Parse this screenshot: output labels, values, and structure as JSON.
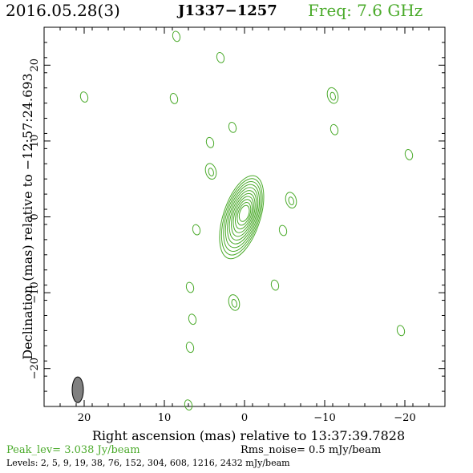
{
  "header": {
    "date": "2016.05.28(3)",
    "source": "J1337−1257",
    "frequency": "Freq: 7.6 GHz"
  },
  "colors": {
    "contour": "#4aaa2a",
    "beam": "#808080",
    "frequency_text": "#4aaa2a"
  },
  "chart_data": {
    "type": "contour",
    "xlabel": "Right ascension (mas) relative to 13:37:39.7828",
    "ylabel": "Declination (mas) relative to −12:57:24.693",
    "xlim": [
      25,
      -25
    ],
    "ylim": [
      -25,
      25
    ],
    "x_ticks": [
      20,
      10,
      0,
      -10,
      -20
    ],
    "x_tick_labels": [
      "20",
      "10",
      "0",
      "−10",
      "−20"
    ],
    "y_ticks": [
      20,
      10,
      0,
      -10,
      -20
    ],
    "y_tick_labels": [
      "20",
      "10",
      "0",
      "−10",
      "−20"
    ],
    "grid": false,
    "core": {
      "x": 0,
      "y": 0.5,
      "levels": 11
    },
    "islands": [
      {
        "x": 8.5,
        "y": 23.8,
        "rings": 1
      },
      {
        "x": 3.0,
        "y": 21.0,
        "rings": 1
      },
      {
        "x": 20.0,
        "y": 15.8,
        "rings": 1
      },
      {
        "x": 8.8,
        "y": 15.6,
        "rings": 1
      },
      {
        "x": -11.0,
        "y": 16.0,
        "rings": 2
      },
      {
        "x": -11.2,
        "y": 11.5,
        "rings": 1
      },
      {
        "x": 1.5,
        "y": 11.8,
        "rings": 1
      },
      {
        "x": 4.3,
        "y": 9.8,
        "rings": 1
      },
      {
        "x": -20.5,
        "y": 8.2,
        "rings": 1
      },
      {
        "x": 4.2,
        "y": 6.0,
        "rings": 2
      },
      {
        "x": -5.8,
        "y": 2.2,
        "rings": 2
      },
      {
        "x": 6.0,
        "y": -1.7,
        "rings": 1
      },
      {
        "x": -4.8,
        "y": -1.8,
        "rings": 1
      },
      {
        "x": 6.8,
        "y": -9.3,
        "rings": 1
      },
      {
        "x": -3.8,
        "y": -9.0,
        "rings": 1
      },
      {
        "x": 1.3,
        "y": -11.3,
        "rings": 2
      },
      {
        "x": 6.5,
        "y": -13.5,
        "rings": 1
      },
      {
        "x": -19.5,
        "y": -15.0,
        "rings": 1
      },
      {
        "x": 6.8,
        "y": -17.2,
        "rings": 1
      },
      {
        "x": 7.0,
        "y": -24.8,
        "rings": 1
      }
    ],
    "beam": {
      "x": 20.8,
      "y": -22.8,
      "major_mas": 3.4,
      "minor_mas": 1.4,
      "pa_deg": 0
    }
  },
  "footer": {
    "peak": "Peak_lev=  3.038 Jy/beam",
    "rms": "Rms_noise=  0.5 mJy/beam",
    "levels": "Levels:   2,   5,   9,  19,  38,  76,  152,  304,  608,  1216,  2432  mJy/beam"
  }
}
